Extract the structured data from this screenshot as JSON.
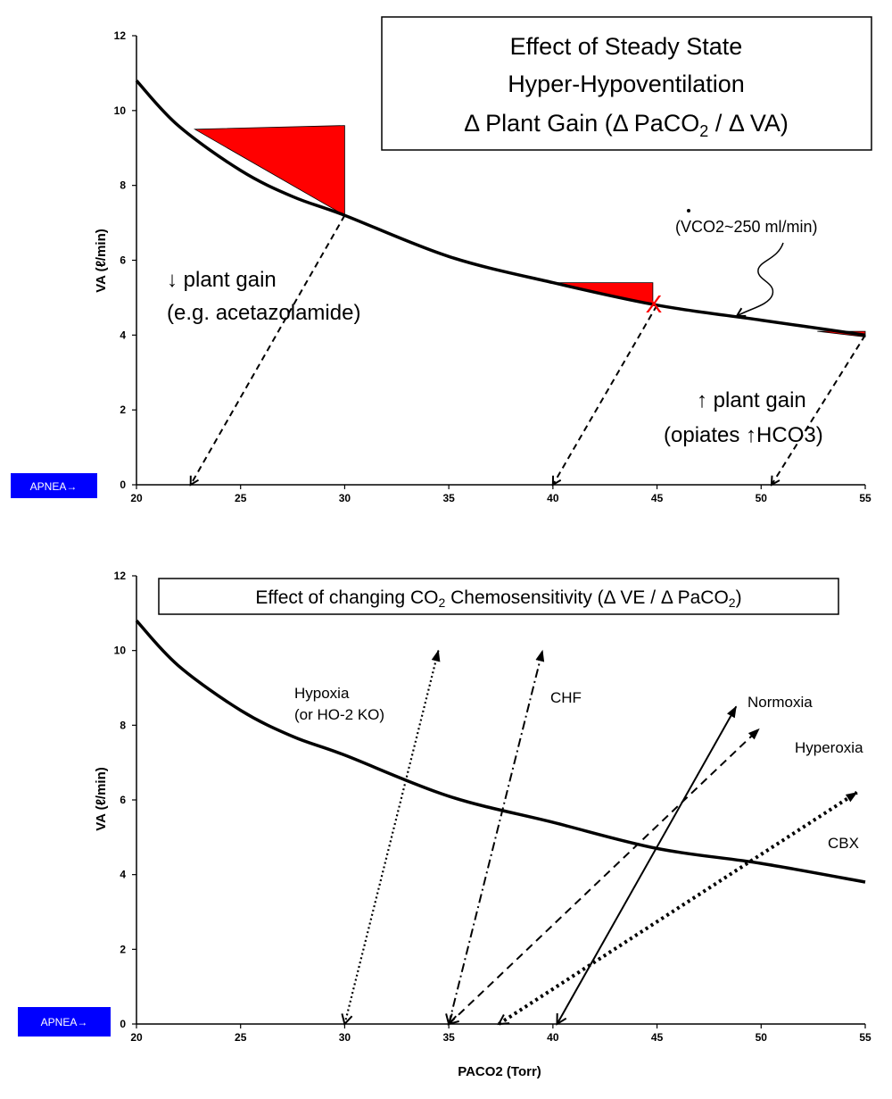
{
  "chart_data": [
    {
      "type": "line",
      "title_lines": [
        "Effect of Steady State",
        "Hyper-Hypoventilation",
        "Δ Plant Gain (Δ PaCO",
        "2",
        " / Δ VA)"
      ],
      "ylabel": "VA (ℓ/min)",
      "xlabel": "",
      "xlim": [
        20,
        55
      ],
      "ylim": [
        0,
        12
      ],
      "x_ticks": [
        20,
        25,
        30,
        35,
        40,
        45,
        50,
        55
      ],
      "y_ticks": [
        0,
        2,
        4,
        6,
        8,
        10,
        12
      ],
      "grid": false,
      "series": [
        {
          "x": [
            20,
            22,
            25,
            27.5,
            30,
            35,
            40,
            45,
            50,
            55
          ],
          "y": [
            10.8,
            9.6,
            8.4,
            7.7,
            7.2,
            6.1,
            5.4,
            4.8,
            4.4,
            4.0
          ]
        }
      ],
      "shaded_triangles": [
        {
          "x": [
            22.8,
            30,
            30
          ],
          "y": [
            9.5,
            9.6,
            7.2
          ]
        },
        {
          "x": [
            40.2,
            44.8,
            44.8
          ],
          "y": [
            5.4,
            5.4,
            4.8
          ]
        },
        {
          "x": [
            52.7,
            55,
            55
          ],
          "y": [
            4.1,
            4.1,
            3.95
          ]
        }
      ],
      "arrows": [
        {
          "from": [
            30,
            7.2
          ],
          "to": [
            22.6,
            0
          ]
        },
        {
          "from": [
            45,
            4.8
          ],
          "to": [
            40,
            0
          ]
        },
        {
          "from": [
            55,
            4.0
          ],
          "to": [
            50.5,
            0
          ]
        }
      ],
      "marker": {
        "x": 44.8,
        "y": 4.8,
        "symbol": "X"
      },
      "annotations": {
        "vco2": "(VCO2~250 ml/min)",
        "down_gain_1": "↓ plant gain",
        "down_gain_2": "(e.g. acetazolamide)",
        "up_gain_1": "↑ plant gain",
        "up_gain_2": "(opiates ↑HCO3)",
        "apnea": "APNEA→"
      },
      "colors": {
        "fill": "#ff0000",
        "apnea_bg": "#0000ff"
      }
    },
    {
      "type": "line",
      "title_parts": [
        "Effect of changing   CO",
        "2",
        " Chemosensitivity   (Δ VE /  Δ PaCO",
        "2",
        ")"
      ],
      "ylabel": "VA (ℓ/min)",
      "xlabel": "PACO2 (Torr)",
      "xlim": [
        20,
        55
      ],
      "ylim": [
        0,
        12
      ],
      "x_ticks": [
        20,
        25,
        30,
        35,
        40,
        45,
        50,
        55
      ],
      "y_ticks": [
        0,
        2,
        4,
        6,
        8,
        10,
        12
      ],
      "grid": false,
      "series": [
        {
          "x": [
            20,
            22,
            25,
            27.5,
            30,
            35,
            40,
            45,
            50,
            55
          ],
          "y": [
            10.8,
            9.6,
            8.4,
            7.7,
            7.2,
            6.1,
            5.4,
            4.7,
            4.3,
            3.8
          ]
        },
        {
          "name": "Hypoxia (or HO-2 KO)",
          "x": [
            30,
            34.5
          ],
          "y": [
            0,
            10
          ]
        },
        {
          "name": "CHF",
          "x": [
            35,
            39.5
          ],
          "y": [
            0,
            10
          ]
        },
        {
          "name": "Normoxia",
          "x": [
            40.2,
            48.8
          ],
          "y": [
            0,
            8.5
          ]
        },
        {
          "name": "Hyperoxia",
          "x": [
            35,
            49.9
          ],
          "y": [
            0,
            7.9
          ]
        },
        {
          "name": "CBX",
          "x": [
            37.4,
            54.6
          ],
          "y": [
            0,
            6.2
          ]
        }
      ],
      "annotations": {
        "hypoxia_1": "Hypoxia",
        "hypoxia_2": "(or HO-2 KO)",
        "chf": "CHF",
        "normoxia": "Normoxia",
        "hyperoxia": "Hyperoxia",
        "cbx": "CBX",
        "apnea": "APNEA→"
      },
      "colors": {
        "apnea_bg": "#0000ff"
      }
    }
  ]
}
